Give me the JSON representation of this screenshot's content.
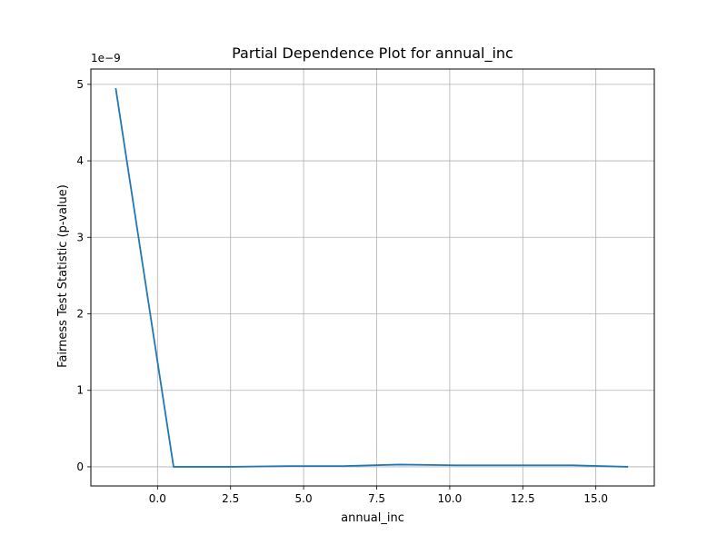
{
  "chart_data": {
    "type": "line",
    "title": "Partial Dependence Plot for annual_inc",
    "xlabel": "annual_inc",
    "ylabel": "Fairness Test Statistic (p-value)",
    "y_offset_label": "1e−9",
    "y_scale_factor": 1e-09,
    "xlim": [
      -2.28,
      17.0
    ],
    "ylim": [
      -0.25,
      5.2
    ],
    "x_ticks": [
      0.0,
      2.5,
      5.0,
      7.5,
      10.0,
      12.5,
      15.0
    ],
    "x_tick_labels": [
      "0.0",
      "2.5",
      "5.0",
      "7.5",
      "10.0",
      "12.5",
      "15.0"
    ],
    "y_ticks": [
      0,
      1,
      2,
      3,
      4,
      5
    ],
    "y_tick_labels": [
      "0",
      "1",
      "2",
      "3",
      "4",
      "5"
    ],
    "grid": true,
    "series": [
      {
        "color": "#1f77b4",
        "x": [
          -1.43,
          0.55,
          2.45,
          4.45,
          6.35,
          8.3,
          10.2,
          12.2,
          14.2,
          16.1
        ],
        "y": [
          4.95,
          0.0,
          0.0,
          0.01,
          0.01,
          0.03,
          0.02,
          0.02,
          0.02,
          0.0
        ]
      }
    ]
  }
}
